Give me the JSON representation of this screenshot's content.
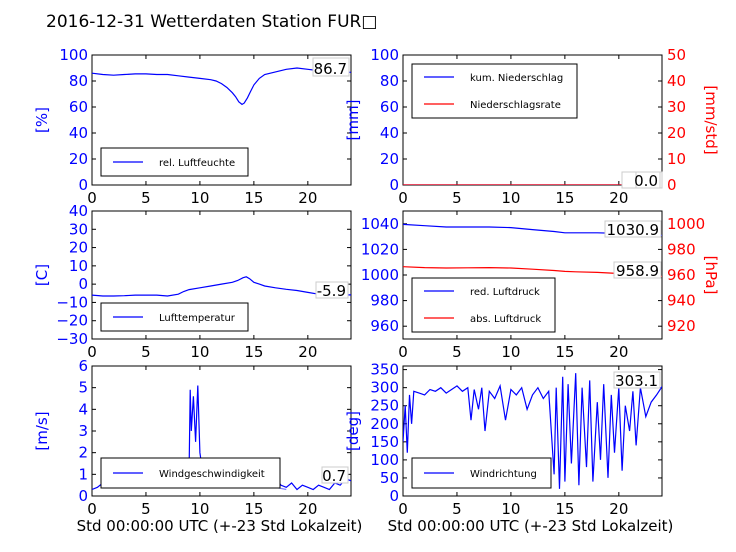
{
  "title": "2016-12-31 Wetterdaten Station FUR□",
  "colors": {
    "left_axis": "#0000ff",
    "right_axis": "#ff0000",
    "series_blue": "#0000ff",
    "series_light": "#8080ff",
    "series_red": "#ff0000"
  },
  "chart_data": [
    {
      "id": "humidity",
      "type": "line",
      "ylabel": "[%]",
      "xlabel": "",
      "xlim": [
        0,
        24
      ],
      "ylim": [
        0,
        100
      ],
      "xticks": [
        "0",
        "5",
        "10",
        "15",
        "20"
      ],
      "yticks": [
        "0",
        "20",
        "40",
        "60",
        "80",
        "100"
      ],
      "current_value": "86.7",
      "legend": {
        "placement": "lower-left"
      },
      "series": [
        {
          "name": "rel. Luftfeuchte",
          "color": "#0000ff",
          "x": [
            0,
            1,
            2,
            3,
            4,
            5,
            6,
            7,
            8,
            9,
            10,
            11,
            11.5,
            12,
            12.5,
            13,
            13.3,
            13.6,
            13.9,
            14.1,
            14.4,
            14.7,
            15,
            15.5,
            16,
            17,
            18,
            19,
            20,
            21,
            22,
            23,
            24
          ],
          "y": [
            86,
            85,
            84.5,
            85,
            85.5,
            85.5,
            85,
            85,
            84,
            83,
            82,
            81,
            80,
            78,
            75,
            71,
            68,
            64,
            62,
            63,
            67,
            72,
            77,
            82,
            85,
            87,
            89,
            90,
            89,
            88,
            87.5,
            87,
            86.7
          ]
        }
      ]
    },
    {
      "id": "precip",
      "type": "line",
      "ylabel": "[mm]",
      "ylabel_right": "[mm/std]",
      "xlabel": "",
      "xlim": [
        0,
        24
      ],
      "ylim": [
        0,
        100
      ],
      "ylim_right": [
        0,
        50
      ],
      "xticks": [
        "0",
        "5",
        "10",
        "15",
        "20"
      ],
      "yticks": [
        "0",
        "20",
        "40",
        "60",
        "80",
        "100"
      ],
      "yticks_right": [
        "0",
        "10",
        "20",
        "30",
        "40",
        "50"
      ],
      "current_values": [
        "0.0",
        "0.0"
      ],
      "legend": {
        "placement": "top-left"
      },
      "series": [
        {
          "name": "kum. Niederschlag",
          "color": "#0000ff",
          "axis": "left",
          "x": [
            0,
            24
          ],
          "y": [
            0,
            0
          ]
        },
        {
          "name": "Niederschlagsrate",
          "color": "#ff0000",
          "axis": "right",
          "x": [
            0,
            24
          ],
          "y": [
            0,
            0
          ]
        }
      ]
    },
    {
      "id": "temperature",
      "type": "line",
      "ylabel": "[C]",
      "xlabel": "",
      "xlim": [
        0,
        24
      ],
      "ylim": [
        -30,
        40
      ],
      "xticks": [
        "0",
        "5",
        "10",
        "15",
        "20"
      ],
      "yticks": [
        "−30",
        "−20",
        "−10",
        "0",
        "10",
        "20",
        "30",
        "40"
      ],
      "current_value": "-5.9",
      "legend": {
        "placement": "lower-left"
      },
      "series": [
        {
          "name": "Lufttemperatur",
          "color": "#0000ff",
          "x": [
            0,
            1,
            2,
            3,
            4,
            5,
            6,
            7,
            8,
            8.5,
            9,
            10,
            11,
            12,
            13,
            13.5,
            14,
            14.3,
            14.6,
            15,
            15.5,
            16,
            17,
            18,
            19,
            20,
            21,
            22,
            23,
            24
          ],
          "y": [
            -6,
            -6.5,
            -6.5,
            -6.3,
            -6,
            -6,
            -6,
            -6.5,
            -5.5,
            -4,
            -3,
            -2,
            -1,
            0,
            1,
            2,
            3.5,
            4,
            3,
            1,
            0,
            -1,
            -2,
            -2.8,
            -3.5,
            -4.5,
            -5.5,
            -6,
            -6,
            -5.9
          ]
        }
      ]
    },
    {
      "id": "pressure",
      "type": "line",
      "ylabel": "",
      "ylabel_right": "[hPa]",
      "xlabel": "",
      "xlim": [
        0,
        24
      ],
      "ylim": [
        950,
        1050
      ],
      "ylim_right": [
        910,
        1010
      ],
      "xticks": [
        "0",
        "5",
        "10",
        "15",
        "20"
      ],
      "yticks": [
        "960",
        "980",
        "1000",
        "1020",
        "1040"
      ],
      "yticks_right": [
        "920",
        "940",
        "960",
        "980",
        "1000"
      ],
      "current_values": [
        "1030.9",
        "958.9"
      ],
      "legend": {
        "placement": "lower-left"
      },
      "series": [
        {
          "name": "red. Luftdruck",
          "color": "#0000ff",
          "axis": "left",
          "x": [
            0,
            2,
            4,
            6,
            8,
            10,
            12,
            14,
            15,
            16,
            18,
            20,
            22,
            24
          ],
          "y": [
            1039.5,
            1038.5,
            1037.5,
            1037.5,
            1037.5,
            1037,
            1035.5,
            1034,
            1033,
            1033,
            1033,
            1032.5,
            1031.5,
            1030.9
          ]
        },
        {
          "name": "abs. Luftdruck",
          "color": "#ff0000",
          "axis": "right",
          "x": [
            0,
            2,
            4,
            6,
            8,
            10,
            12,
            14,
            15,
            16,
            18,
            20,
            22,
            24
          ],
          "y": [
            966.5,
            965.8,
            965.5,
            965.6,
            965.8,
            965.5,
            964.5,
            963.5,
            962.8,
            962.5,
            962,
            961.2,
            960,
            958.9
          ]
        }
      ]
    },
    {
      "id": "wind_speed",
      "type": "line",
      "ylabel": "[m/s]",
      "xlabel": "Std 00:00:00 UTC (+-23 Std Lokalzeit)",
      "xlim": [
        0,
        24
      ],
      "ylim": [
        0,
        6
      ],
      "xticks": [
        "0",
        "5",
        "10",
        "15",
        "20"
      ],
      "yticks": [
        "0",
        "1",
        "2",
        "3",
        "4",
        "5",
        "6"
      ],
      "current_value": "0.7",
      "legend": {
        "placement": "lower-left"
      },
      "series": [
        {
          "name": "Windgeschwindigkeit",
          "color": "#0000ff",
          "x": [
            0,
            0.5,
            1,
            1.5,
            2,
            2.5,
            3,
            3.5,
            4,
            4.5,
            5,
            5.5,
            6,
            6.5,
            7,
            7.5,
            8,
            8.5,
            9,
            9.1,
            9.2,
            9.4,
            9.6,
            9.8,
            10,
            10.2,
            10.4,
            10.6,
            11,
            11.5,
            12,
            12.5,
            13,
            13.5,
            14,
            14.5,
            15,
            15.5,
            16,
            16.5,
            17,
            17.5,
            18,
            18.5,
            19,
            19.5,
            20,
            20.5,
            21,
            21.5,
            22,
            22.5,
            23,
            23.5,
            24
          ],
          "y": [
            0.3,
            0.4,
            0.6,
            0.9,
            1.1,
            1.0,
            0.8,
            0.9,
            1.2,
            0.8,
            0.6,
            0.9,
            0.7,
            1.0,
            0.8,
            0.9,
            0.6,
            0.5,
            1.2,
            4.9,
            3.0,
            4.6,
            2.5,
            5.1,
            2.0,
            1.3,
            0.8,
            0.6,
            0.9,
            0.7,
            1.1,
            0.8,
            0.5,
            0.9,
            0.6,
            1.0,
            0.7,
            1.1,
            0.8,
            0.6,
            0.9,
            0.5,
            0.4,
            0.6,
            0.3,
            0.5,
            0.4,
            0.3,
            0.5,
            0.4,
            0.3,
            0.6,
            0.5,
            0.8,
            0.7
          ]
        },
        {
          "name": "",
          "color": "#8080ff",
          "x": [
            1,
            2,
            3,
            4,
            5,
            6,
            7,
            8,
            9,
            10,
            11,
            12,
            13,
            14,
            15,
            16,
            17,
            18
          ],
          "y": [
            0.5,
            0.8,
            0.6,
            0.9,
            0.5,
            0.7,
            0.6,
            0.7,
            0.9,
            1.2,
            0.6,
            0.8,
            0.5,
            0.6,
            0.5,
            0.6,
            0.4,
            0.3
          ]
        }
      ]
    },
    {
      "id": "wind_direction",
      "type": "line",
      "ylabel": "[deg]",
      "xlabel": "Std 00:00:00 UTC (+-23 Std Lokalzeit)",
      "xlim": [
        0,
        24
      ],
      "ylim": [
        0,
        360
      ],
      "xticks": [
        "0",
        "5",
        "10",
        "15",
        "20"
      ],
      "yticks": [
        "0",
        "50",
        "100",
        "150",
        "200",
        "250",
        "300",
        "350"
      ],
      "current_value": "303.1",
      "legend": {
        "placement": "lower-left"
      },
      "series": [
        {
          "name": "Windrichtung",
          "color": "#0000ff",
          "x": [
            0,
            0.2,
            0.4,
            0.6,
            0.8,
            1,
            1.5,
            2,
            2.5,
            3,
            3.5,
            4,
            4.5,
            5,
            5.5,
            6,
            6.3,
            6.6,
            7,
            7.3,
            7.6,
            8,
            8.5,
            9,
            9.5,
            10,
            10.5,
            11,
            11.5,
            12,
            12.5,
            13,
            13.5,
            14,
            14.2,
            14.5,
            14.8,
            15,
            15.3,
            15.6,
            16,
            16.3,
            16.6,
            17,
            17.3,
            17.6,
            18,
            18.3,
            18.6,
            19,
            19.3,
            19.6,
            20,
            20.3,
            20.6,
            21,
            21.3,
            21.6,
            22,
            22.5,
            23,
            23.5,
            24
          ],
          "y": [
            150,
            250,
            120,
            280,
            200,
            290,
            285,
            280,
            295,
            290,
            300,
            285,
            295,
            305,
            290,
            300,
            210,
            295,
            240,
            300,
            180,
            290,
            270,
            305,
            210,
            295,
            280,
            300,
            240,
            280,
            300,
            270,
            290,
            60,
            300,
            20,
            330,
            40,
            310,
            90,
            340,
            30,
            300,
            80,
            320,
            40,
            260,
            100,
            310,
            50,
            280,
            120,
            300,
            70,
            250,
            180,
            290,
            140,
            300,
            220,
            260,
            280,
            303
          ]
        }
      ]
    }
  ]
}
